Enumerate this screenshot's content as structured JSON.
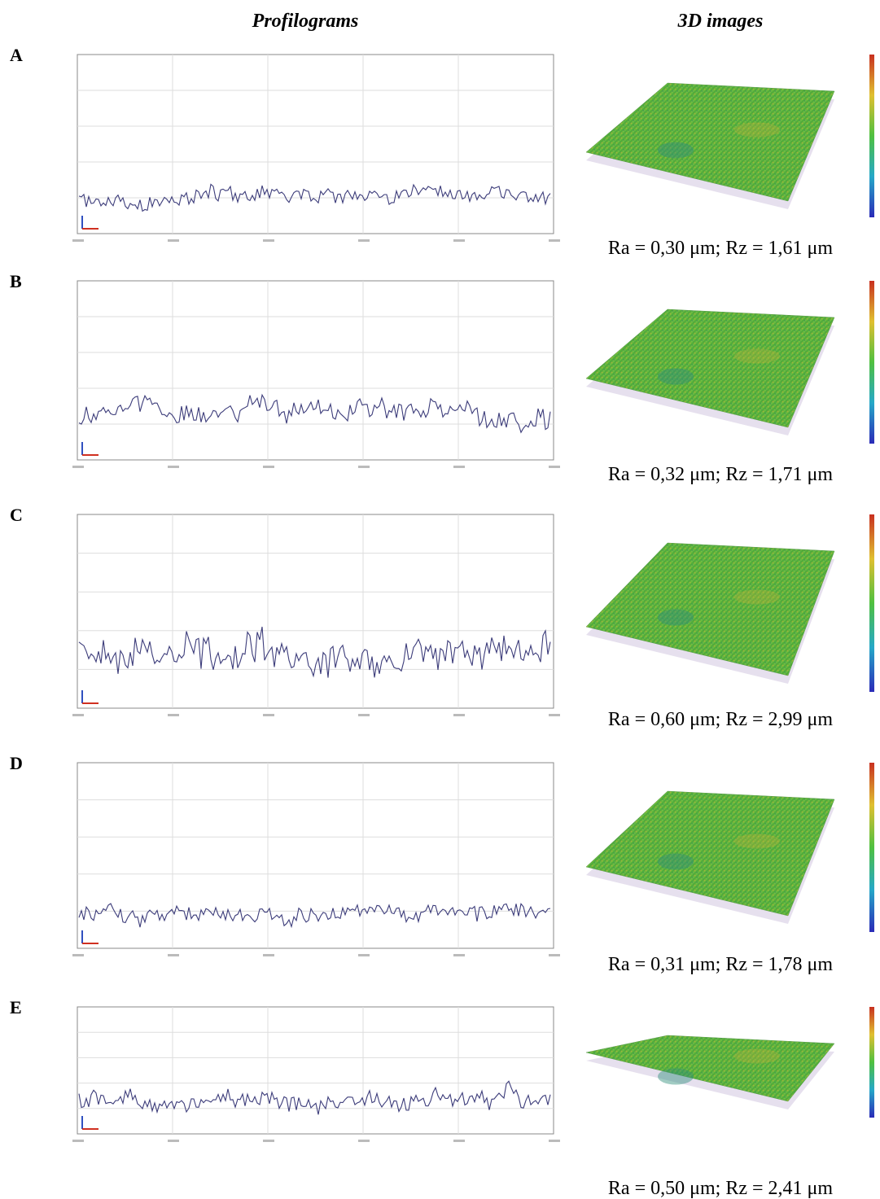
{
  "header": {
    "left": "Profilograms",
    "right": "3D images"
  },
  "panels": [
    {
      "label": "A",
      "caption": "Ra = 0,30 μm; Rz = 1,61 μm"
    },
    {
      "label": "B",
      "caption": "Ra = 0,32 μm; Rz = 1,71 μm"
    },
    {
      "label": "C",
      "caption": "Ra = 0,60 μm; Rz = 2,99 μm"
    },
    {
      "label": "D",
      "caption": "Ra = 0,31 μm; Rz = 1,78 μm"
    },
    {
      "label": "E",
      "caption": "Ra = 0,50 μm; Rz = 2,41 μm"
    }
  ]
}
